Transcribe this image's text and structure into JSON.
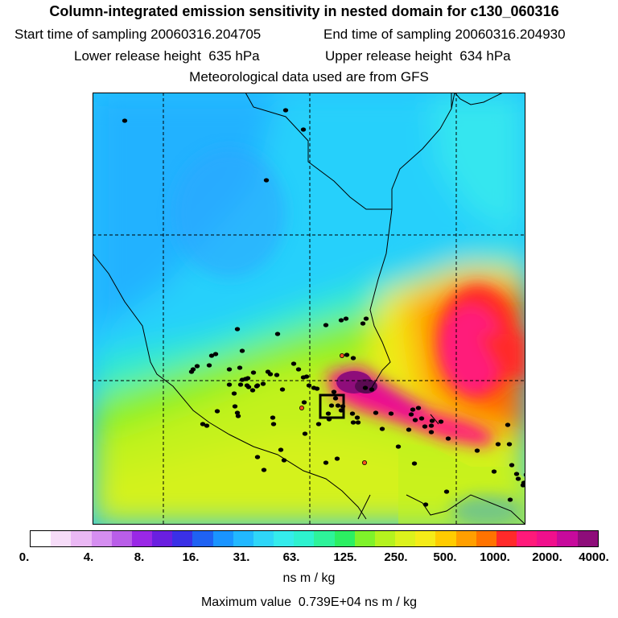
{
  "header": {
    "title": "Column-integrated emission sensitivity in nested domain for c130_060316",
    "start_label": "Start time of sampling",
    "start_value": "20060316.204705",
    "end_label": "End time of sampling",
    "end_value": "20060316.204930",
    "lower_label": "Lower release height",
    "lower_value": "635 hPa",
    "upper_label": "Upper release height",
    "upper_value": "634 hPa",
    "met": "Meteorological data used are from GFS"
  },
  "colorbar": {
    "ticks": [
      "0.",
      "4.",
      "8.",
      "16.",
      "31.",
      "63.",
      "125.",
      "250.",
      "500.",
      "1000.",
      "2000.",
      "4000."
    ],
    "colors": [
      "#ffffff",
      "#f6dcf8",
      "#eab8f4",
      "#d58ef0",
      "#b95ee8",
      "#9a28e6",
      "#6a1fe0",
      "#3a30e6",
      "#1f62f2",
      "#1a94ff",
      "#22b8ff",
      "#2fd6f8",
      "#35ecec",
      "#2ef2cf",
      "#2ef39a",
      "#2cef62",
      "#7ff22a",
      "#b5f21e",
      "#dcf21c",
      "#f5ec18",
      "#ffcc00",
      "#ff9f00",
      "#ff7300",
      "#ff2a2a",
      "#ff1a7a",
      "#f0108c",
      "#c70a9c",
      "#8e0d7a"
    ],
    "units": "ns m / kg"
  },
  "max_value_label": "Maximum value",
  "max_value": "0.739E+04 ns m / kg"
}
